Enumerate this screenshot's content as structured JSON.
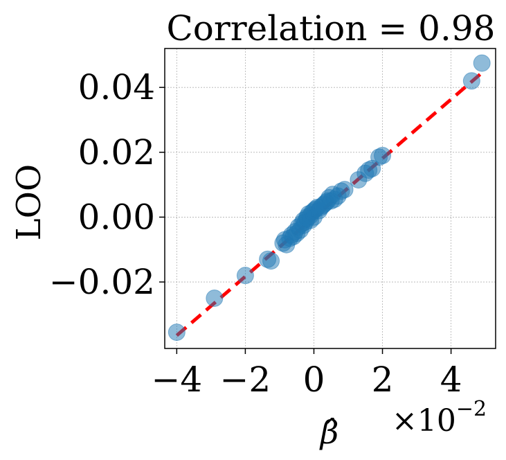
{
  "chart_data": {
    "type": "scatter",
    "title": "Correlation = 0.98",
    "xlabel": "β̂",
    "ylabel": "LOO",
    "x_multiplier_label": "×10",
    "x_multiplier_exponent": "−2",
    "xlim": [
      -4.35,
      5.3
    ],
    "ylim": [
      -0.0405,
      0.052
    ],
    "x_ticks": [
      {
        "value": -4,
        "label": "−4"
      },
      {
        "value": -2,
        "label": "−2"
      },
      {
        "value": 0,
        "label": "0"
      },
      {
        "value": 2,
        "label": "2"
      },
      {
        "value": 4,
        "label": "4"
      }
    ],
    "y_ticks": [
      {
        "value": -0.02,
        "label": "−0.02"
      },
      {
        "value": 0.0,
        "label": "0.00"
      },
      {
        "value": 0.02,
        "label": "0.02"
      },
      {
        "value": 0.04,
        "label": "0.04"
      }
    ],
    "grid": true,
    "fit_line": {
      "x": [
        -4.0,
        4.9
      ],
      "y": [
        -0.0365,
        0.0445
      ],
      "color": "#ff0000",
      "style": "dashed"
    },
    "point_color": "#1f77b4",
    "points": {
      "x": [
        -4.0,
        -2.9,
        -2.0,
        -1.35,
        -1.25,
        -0.9,
        -0.85,
        -0.8,
        -0.7,
        -0.65,
        -0.6,
        -0.55,
        -0.5,
        -0.45,
        -0.4,
        -0.35,
        -0.3,
        -0.3,
        -0.25,
        -0.2,
        -0.2,
        -0.15,
        -0.1,
        -0.1,
        -0.05,
        0.0,
        0.0,
        0.05,
        0.1,
        0.15,
        0.2,
        0.25,
        0.3,
        0.35,
        0.4,
        0.45,
        0.5,
        0.55,
        0.6,
        0.7,
        0.8,
        0.9,
        1.3,
        1.5,
        1.6,
        1.7,
        1.9,
        2.0,
        4.6,
        4.9
      ],
      "y": [
        -0.0355,
        -0.025,
        -0.018,
        -0.013,
        -0.0135,
        -0.008,
        -0.007,
        -0.0085,
        -0.0065,
        -0.0055,
        -0.006,
        -0.0045,
        -0.005,
        -0.003,
        -0.004,
        -0.002,
        -0.0025,
        -0.001,
        -0.0015,
        0.0,
        -0.0005,
        0.001,
        0.0005,
        -0.001,
        0.0015,
        0.002,
        0.0,
        0.0025,
        0.003,
        0.002,
        0.003,
        0.0035,
        0.004,
        0.0045,
        0.005,
        0.006,
        0.005,
        0.007,
        0.0055,
        0.0065,
        0.008,
        0.0085,
        0.0115,
        0.0135,
        0.0145,
        0.015,
        0.0185,
        0.019,
        0.042,
        0.0475
      ]
    }
  }
}
